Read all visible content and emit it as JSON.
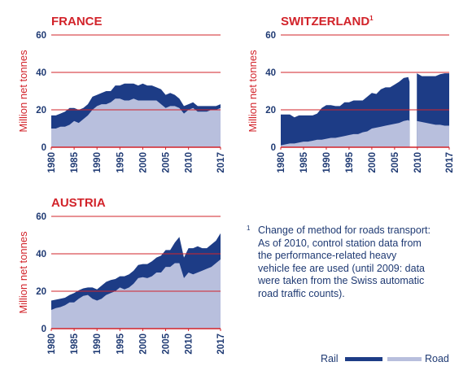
{
  "colors": {
    "rail": "#1d3c86",
    "road": "#b8bfdd",
    "grid": "#d2232a",
    "title": "#d2232a",
    "ylabel": "#d2232a",
    "tick": "#1f3a73",
    "legend_text": "#1f3a73"
  },
  "footnote": {
    "marker": "1",
    "text": "Change of method for roads transport:\nAs of 2010, control station data from\nthe performance-related heavy\nvehicle fee are used (until 2009: data\nwere taken from the Swiss automatic\nroad traffic counts)."
  },
  "legend": [
    {
      "label": "Rail",
      "color": "#1d3c86"
    },
    {
      "label": "Road",
      "color": "#b8bfdd"
    }
  ],
  "chart_data": [
    {
      "type": "area",
      "title": "FRANCE",
      "ylabel": "Million net tonnes",
      "ylim": [
        0,
        60
      ],
      "yticks": [
        0,
        20,
        40,
        60
      ],
      "xticks": [
        1980,
        1985,
        1990,
        1995,
        2000,
        2005,
        2010,
        2017
      ],
      "stacked": true,
      "grid": true,
      "x": [
        1980,
        1981,
        1982,
        1983,
        1984,
        1985,
        1986,
        1987,
        1988,
        1989,
        1990,
        1991,
        1992,
        1993,
        1994,
        1995,
        1996,
        1997,
        1998,
        1999,
        2000,
        2001,
        2002,
        2003,
        2004,
        2005,
        2006,
        2007,
        2008,
        2009,
        2010,
        2011,
        2012,
        2013,
        2014,
        2015,
        2016,
        2017
      ],
      "series": [
        {
          "name": "Road",
          "values": [
            10,
            10,
            11,
            11,
            12,
            14,
            13,
            15,
            17,
            20,
            22,
            23,
            23,
            24,
            26,
            26,
            25,
            25,
            26,
            25,
            25,
            25,
            25,
            25,
            23,
            21,
            22,
            22,
            21,
            18,
            20,
            21,
            19,
            19,
            19,
            20,
            20,
            21
          ]
        },
        {
          "name": "Rail",
          "values": [
            7,
            7,
            7,
            8,
            9,
            7,
            7,
            6,
            6,
            7,
            6,
            6,
            7,
            6,
            7,
            7,
            9,
            9,
            8,
            8,
            9,
            8,
            8,
            7,
            8,
            7,
            7,
            6,
            5,
            4,
            3,
            3,
            3,
            3,
            3,
            2,
            2,
            2
          ]
        }
      ]
    },
    {
      "type": "area",
      "title": "SWITZERLAND",
      "title_sup": "1",
      "ylabel": "Million net tonnes",
      "ylim": [
        0,
        60
      ],
      "yticks": [
        0,
        20,
        40,
        60
      ],
      "xticks": [
        1980,
        1985,
        1990,
        1995,
        2000,
        2005,
        2010,
        2017
      ],
      "stacked": true,
      "grid": true,
      "break_between": [
        2009,
        2010
      ],
      "x": [
        1980,
        1981,
        1982,
        1983,
        1984,
        1985,
        1986,
        1987,
        1988,
        1989,
        1990,
        1991,
        1992,
        1993,
        1994,
        1995,
        1996,
        1997,
        1998,
        1999,
        2000,
        2001,
        2002,
        2003,
        2004,
        2005,
        2006,
        2007,
        2008,
        2009,
        2010,
        2011,
        2012,
        2013,
        2014,
        2015,
        2016,
        2017
      ],
      "series": [
        {
          "name": "Road",
          "values": [
            1,
            1.5,
            2,
            2,
            2.5,
            3,
            3,
            3.5,
            4,
            4,
            4.5,
            5,
            5,
            5.5,
            6,
            6.5,
            7,
            7,
            8,
            8.5,
            10,
            10.5,
            11,
            11.5,
            12,
            12.5,
            13,
            14,
            14.5,
            14,
            14,
            13.5,
            13,
            12.5,
            12,
            12,
            11.5,
            11.5
          ]
        },
        {
          "name": "Rail",
          "values": [
            16.5,
            16,
            15.5,
            14,
            14.5,
            14,
            14,
            13.5,
            14,
            17,
            18,
            17.5,
            17,
            16.5,
            18,
            17.5,
            18,
            18,
            17,
            18.5,
            19,
            18,
            20,
            20.5,
            20,
            21,
            22,
            23,
            23,
            21,
            25.5,
            24.5,
            25,
            25.5,
            26,
            27,
            28,
            28
          ]
        }
      ]
    },
    {
      "type": "area",
      "title": "AUSTRIA",
      "ylabel": "Million net tonnes",
      "ylim": [
        0,
        60
      ],
      "yticks": [
        0,
        20,
        40,
        60
      ],
      "xticks": [
        1980,
        1985,
        1990,
        1995,
        2000,
        2005,
        2010,
        2017
      ],
      "stacked": true,
      "grid": true,
      "x": [
        1980,
        1981,
        1982,
        1983,
        1984,
        1985,
        1986,
        1987,
        1988,
        1989,
        1990,
        1991,
        1992,
        1993,
        1994,
        1995,
        1996,
        1997,
        1998,
        1999,
        2000,
        2001,
        2002,
        2003,
        2004,
        2005,
        2006,
        2007,
        2008,
        2009,
        2010,
        2011,
        2012,
        2013,
        2014,
        2015,
        2016,
        2017
      ],
      "series": [
        {
          "name": "Road",
          "values": [
            10,
            11,
            11.5,
            12.5,
            14,
            14,
            16,
            17.5,
            18,
            16,
            15,
            16,
            18,
            19,
            20,
            22,
            21,
            22,
            24,
            27,
            27.5,
            27,
            28,
            30,
            30,
            33,
            33,
            35,
            35,
            27,
            30,
            29,
            30,
            31,
            32,
            33,
            35,
            37
          ]
        },
        {
          "name": "Rail",
          "values": [
            5,
            4.5,
            4.5,
            4,
            4,
            5,
            4.5,
            4,
            4,
            6,
            6,
            7,
            7,
            7,
            6.5,
            6,
            7,
            7,
            7,
            7,
            7,
            7.5,
            8,
            8,
            9,
            9,
            9,
            11,
            14,
            11,
            13,
            14,
            14,
            12,
            11,
            12,
            12,
            14
          ]
        }
      ]
    }
  ]
}
